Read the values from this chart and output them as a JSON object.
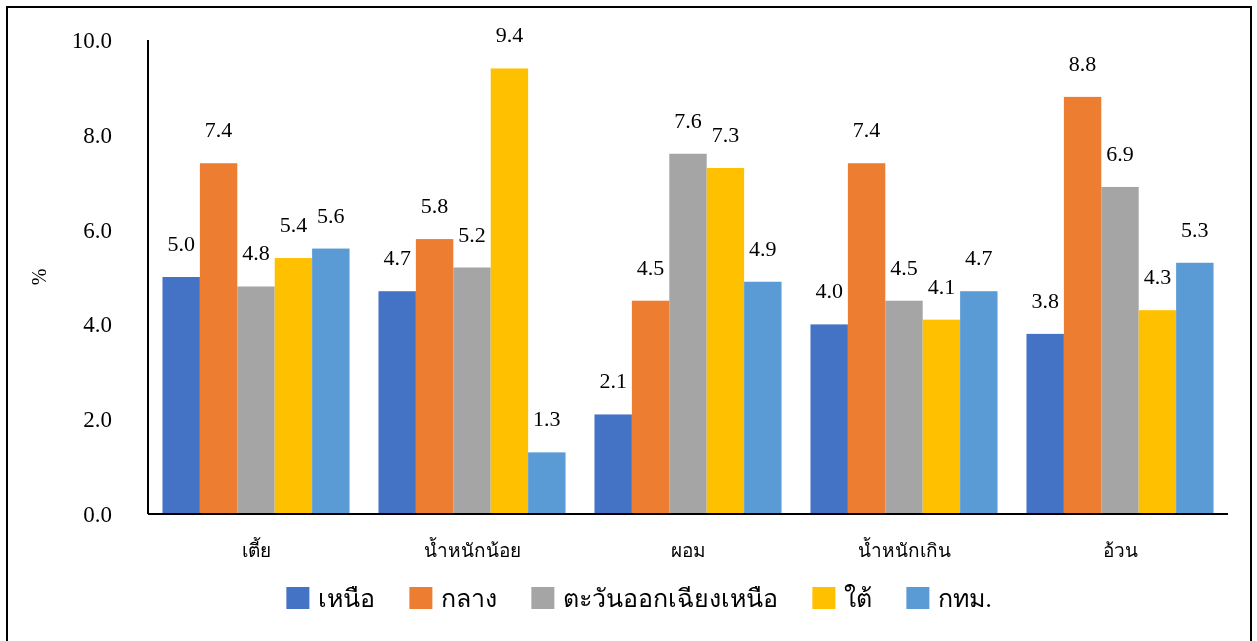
{
  "chart_data": {
    "type": "bar",
    "ylabel": "%",
    "categories": [
      "เตี้ย",
      "น้ำหนักน้อย",
      "ผอม",
      "น้ำหนักเกิน",
      "อ้วน"
    ],
    "series": [
      {
        "name": "เหนือ",
        "color": "#4472c4",
        "values": [
          5.0,
          4.7,
          2.1,
          4.0,
          3.8
        ],
        "value_labels": [
          "5.0",
          "4.7",
          "2.1",
          "4.0",
          "3.8"
        ]
      },
      {
        "name": "กลาง",
        "color": "#ed7d31",
        "values": [
          7.4,
          5.8,
          4.5,
          7.4,
          8.8
        ],
        "value_labels": [
          "7.4",
          "5.8",
          "4.5",
          "7.4",
          "8.8"
        ]
      },
      {
        "name": "ตะวันออกเฉียงเหนือ",
        "color": "#a5a5a5",
        "values": [
          4.8,
          5.2,
          7.6,
          4.5,
          6.9
        ],
        "value_labels": [
          "4.8",
          "5.2",
          "7.6",
          "4.5",
          "6.9"
        ]
      },
      {
        "name": "ใต้",
        "color": "#ffc000",
        "values": [
          5.4,
          9.4,
          7.3,
          4.1,
          4.3
        ],
        "value_labels": [
          "5.4",
          "9.4",
          "7.3",
          "4.1",
          "4.3"
        ]
      },
      {
        "name": "กทม.",
        "color": "#5b9bd5",
        "values": [
          5.6,
          1.3,
          4.9,
          4.7,
          5.3
        ],
        "value_labels": [
          "5.6",
          "1.3",
          "4.9",
          "4.7",
          "5.3"
        ]
      }
    ],
    "ylim": [
      0,
      10
    ],
    "yticks": [
      {
        "value": 0,
        "label": "0.0"
      },
      {
        "value": 2,
        "label": "2.0"
      },
      {
        "value": 4,
        "label": "4.0"
      },
      {
        "value": 6,
        "label": "6.0"
      },
      {
        "value": 8,
        "label": "8.0"
      },
      {
        "value": 10,
        "label": "10.0"
      }
    ],
    "legend": "bottom"
  }
}
